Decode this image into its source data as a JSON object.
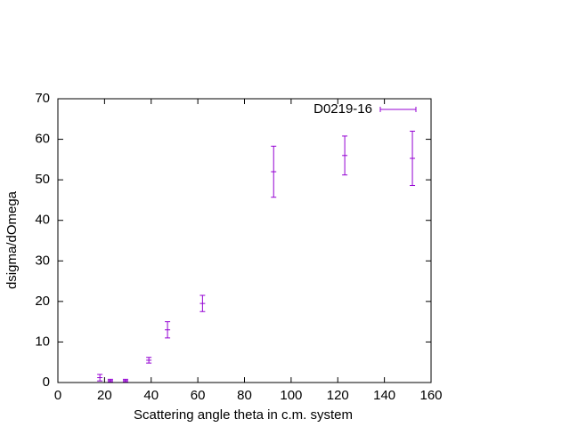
{
  "chart_data": {
    "type": "errorbar",
    "xlabel": "Scattering angle theta in c.m. system",
    "ylabel": "dsigma/dOmega",
    "x": [
      18,
      22.5,
      29,
      39,
      47,
      62,
      92.5,
      123,
      152
    ],
    "series": [
      {
        "name": "D0219-16",
        "color": "#9400d3",
        "values": [
          1.2,
          0.5,
          0.5,
          5.5,
          13,
          19.5,
          52,
          56,
          55.3
        ],
        "errors": [
          0.8,
          0.3,
          0.3,
          0.7,
          2,
          2,
          6.3,
          4.8,
          6.7
        ]
      }
    ],
    "xlim": [
      0,
      160
    ],
    "xticks": [
      0,
      20,
      40,
      60,
      80,
      100,
      120,
      140,
      160
    ],
    "ylim": [
      0,
      70
    ],
    "yticks": [
      0,
      10,
      20,
      30,
      40,
      50,
      60,
      70
    ],
    "legend": "top-right"
  }
}
